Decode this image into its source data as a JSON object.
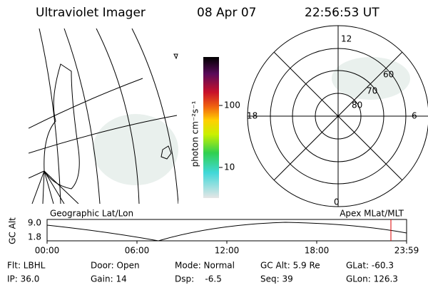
{
  "header": {
    "title": "Ultraviolet Imager",
    "date": "08 Apr 07",
    "time": "22:56:53 UT"
  },
  "colorbar": {
    "label": "photon cm⁻²s⁻¹",
    "ticks": [
      "100",
      "10"
    ]
  },
  "polar": {
    "mlt_labels": [
      "12",
      "18",
      "6",
      "0"
    ],
    "mlat_labels": [
      "60",
      "70",
      "80"
    ]
  },
  "timeline": {
    "left_label": "Geographic Lat/Lon",
    "right_label": "Apex MLat/MLT",
    "y_title": "GC Alt",
    "y_ticks": [
      "9.0",
      "1.8"
    ],
    "x_ticks": [
      "00:00",
      "06:00",
      "12:00",
      "18:00",
      "23:59"
    ]
  },
  "footer": {
    "rows": [
      [
        "Flt: LBHL",
        "Door: Open",
        "Mode: Normal",
        "GC Alt: 5.9 Re",
        "GLat: -60.3"
      ],
      [
        "IP: 36.0",
        "Gain: 14",
        "Dsp:    -6.5",
        "Seq: 39",
        "GLon: 126.3"
      ]
    ]
  }
}
